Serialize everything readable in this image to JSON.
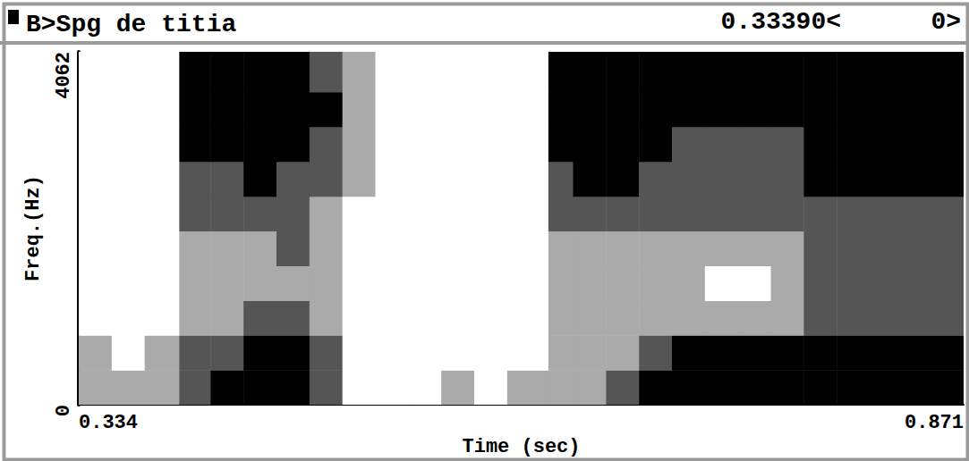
{
  "chart_data": {
    "type": "heatmap",
    "title": "B>Spg de titia",
    "annotations": [
      "0.33390<",
      "0>"
    ],
    "x_label": "Time (sec)",
    "y_label": "Freq.(Hz)",
    "xlim": [
      0.334,
      0.871
    ],
    "xticks": [
      0.334,
      0.871
    ],
    "ylim": [
      0,
      4062
    ],
    "yticks": [
      0,
      4062
    ],
    "x_edges": [
      0.334,
      0.354,
      0.374,
      0.395,
      0.414,
      0.434,
      0.454,
      0.474,
      0.494,
      0.514,
      0.534,
      0.554,
      0.574,
      0.594,
      0.619,
      0.634,
      0.654,
      0.674,
      0.694,
      0.714,
      0.734,
      0.754,
      0.774,
      0.794,
      0.814,
      0.834,
      0.854,
      0.871
    ],
    "y_edges": [
      0,
      400,
      800,
      1200,
      1600,
      2000,
      2400,
      2800,
      3200,
      3600,
      4062
    ],
    "cells": [
      [
        1,
        1,
        1,
        2,
        3,
        3,
        3,
        2,
        0,
        0,
        0,
        1,
        0,
        1,
        1,
        1,
        2,
        3,
        3,
        3,
        3,
        3,
        3,
        3,
        3,
        3,
        3
      ],
      [
        1,
        0,
        1,
        2,
        2,
        3,
        3,
        2,
        0,
        0,
        0,
        0,
        0,
        0,
        1,
        1,
        1,
        2,
        3,
        3,
        3,
        3,
        3,
        3,
        3,
        3,
        3
      ],
      [
        0,
        0,
        0,
        1,
        1,
        2,
        2,
        1,
        0,
        0,
        0,
        0,
        0,
        0,
        1,
        1,
        1,
        1,
        1,
        1,
        1,
        1,
        2,
        2,
        2,
        2,
        2
      ],
      [
        0,
        0,
        0,
        1,
        1,
        1,
        1,
        1,
        0,
        0,
        0,
        0,
        0,
        0,
        1,
        1,
        1,
        1,
        1,
        0,
        0,
        1,
        2,
        2,
        2,
        2,
        2
      ],
      [
        0,
        0,
        0,
        1,
        1,
        1,
        2,
        1,
        0,
        0,
        0,
        0,
        0,
        0,
        1,
        1,
        1,
        1,
        1,
        1,
        1,
        1,
        2,
        2,
        2,
        2,
        2
      ],
      [
        0,
        0,
        0,
        2,
        2,
        2,
        2,
        1,
        0,
        0,
        0,
        0,
        0,
        0,
        2,
        2,
        2,
        2,
        2,
        2,
        2,
        2,
        2,
        2,
        2,
        2,
        2
      ],
      [
        0,
        0,
        0,
        2,
        2,
        3,
        2,
        2,
        1,
        0,
        0,
        0,
        0,
        0,
        2,
        3,
        3,
        2,
        2,
        2,
        2,
        2,
        3,
        3,
        3,
        3,
        3
      ],
      [
        0,
        0,
        0,
        3,
        3,
        3,
        3,
        2,
        1,
        0,
        0,
        0,
        0,
        0,
        3,
        3,
        3,
        3,
        2,
        2,
        2,
        2,
        3,
        3,
        3,
        3,
        3
      ],
      [
        0,
        0,
        0,
        3,
        3,
        3,
        3,
        3,
        1,
        0,
        0,
        0,
        0,
        0,
        3,
        3,
        3,
        3,
        3,
        3,
        3,
        3,
        3,
        3,
        3,
        3,
        3
      ],
      [
        0,
        0,
        0,
        3,
        3,
        3,
        3,
        2,
        1,
        0,
        0,
        0,
        0,
        0,
        3,
        3,
        3,
        3,
        3,
        3,
        3,
        3,
        3,
        3,
        3,
        3,
        3
      ]
    ],
    "zlim": [
      0,
      3
    ],
    "color": "#000000",
    "grid": false
  }
}
